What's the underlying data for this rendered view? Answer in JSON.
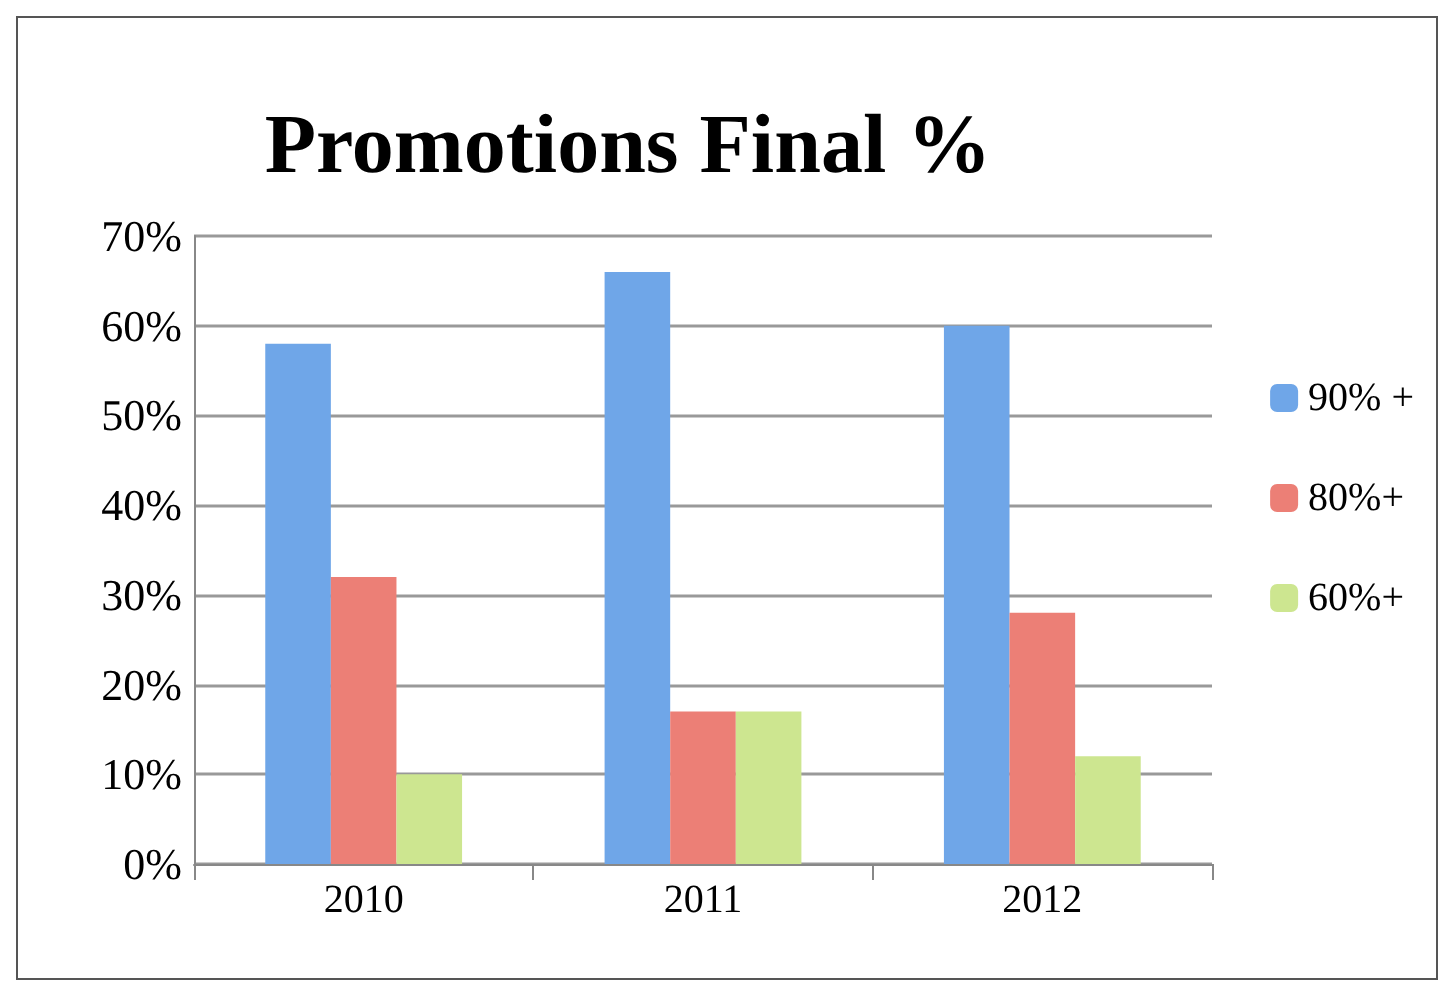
{
  "chart_data": {
    "type": "bar",
    "title": "Promotions Final %",
    "categories": [
      "2010",
      "2011",
      "2012"
    ],
    "series": [
      {
        "name": "90% +",
        "color": "#6fa6e8",
        "values": [
          58,
          66,
          60
        ]
      },
      {
        "name": "80%+",
        "color": "#ec7f76",
        "values": [
          32,
          17,
          28
        ]
      },
      {
        "name": "60%+",
        "color": "#cde690",
        "values": [
          10,
          17,
          12
        ]
      }
    ],
    "ylim": [
      0,
      70
    ],
    "yticks": [
      {
        "value": 0,
        "label": "0%"
      },
      {
        "value": 10,
        "label": "10%"
      },
      {
        "value": 20,
        "label": "20%"
      },
      {
        "value": 30,
        "label": "30%"
      },
      {
        "value": 40,
        "label": "40%"
      },
      {
        "value": 50,
        "label": "50%"
      },
      {
        "value": 60,
        "label": "60%"
      },
      {
        "value": 70,
        "label": "70%"
      }
    ],
    "grid": "y",
    "legend": "right"
  }
}
